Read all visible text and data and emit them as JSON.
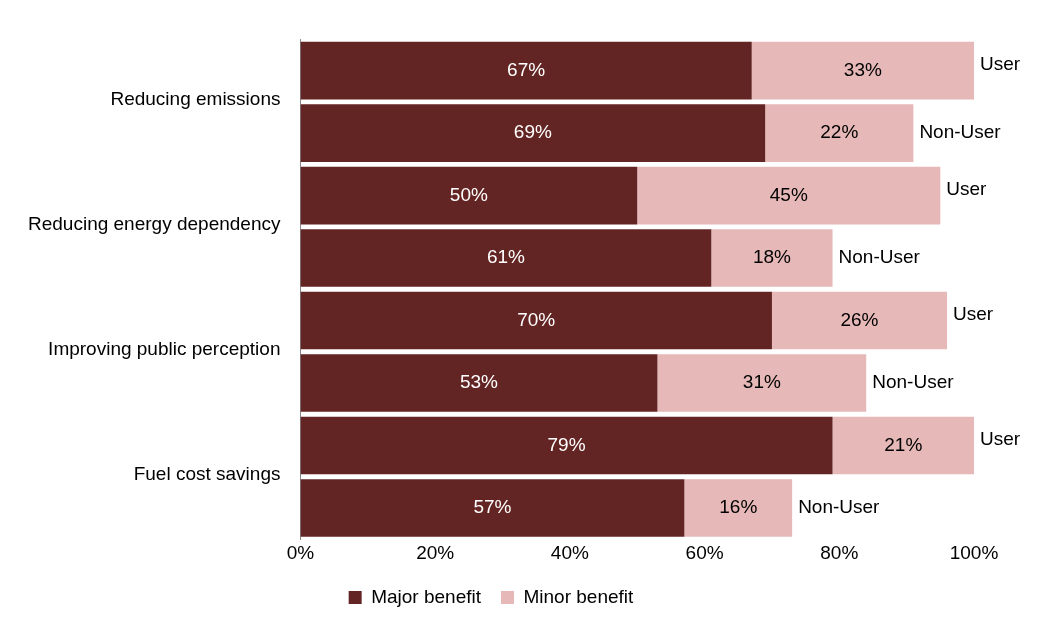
{
  "chart_data": {
    "type": "bar",
    "orientation": "horizontal",
    "stacked": true,
    "categories": [
      "Reducing emissions",
      null,
      "Reducing energy dependency",
      null,
      "Improving public perception",
      null,
      "Fuel cost savings",
      null
    ],
    "series": [
      {
        "name": "Major benefit",
        "color": "#632523",
        "values": [
          67,
          69,
          50,
          61,
          70,
          53,
          79,
          57
        ],
        "value_labels": [
          "67%",
          "69%",
          "50%",
          "61%",
          "70%",
          "53%",
          "79%",
          "57%"
        ]
      },
      {
        "name": "Minor benefit",
        "color": "#e6b9b8",
        "values": [
          33,
          22,
          45,
          18,
          26,
          31,
          21,
          16
        ],
        "value_labels": [
          "33%",
          "22%",
          "45%",
          "18%",
          "26%",
          "31%",
          "21%",
          "16%"
        ]
      }
    ],
    "xlim": [
      0,
      100
    ],
    "xticks": [
      {
        "value": 0,
        "label": "0%"
      },
      {
        "value": 20,
        "label": "20%"
      },
      {
        "value": 40,
        "label": "40%"
      },
      {
        "value": 60,
        "label": "60%"
      },
      {
        "value": 80,
        "label": "80%"
      },
      {
        "value": 100,
        "label": "100%"
      }
    ],
    "annotations": [
      "User",
      "Non-User",
      "User",
      "Non-User",
      "User",
      "Non-User",
      "User",
      "Non-User"
    ],
    "grid": false,
    "legend": "bottom"
  }
}
